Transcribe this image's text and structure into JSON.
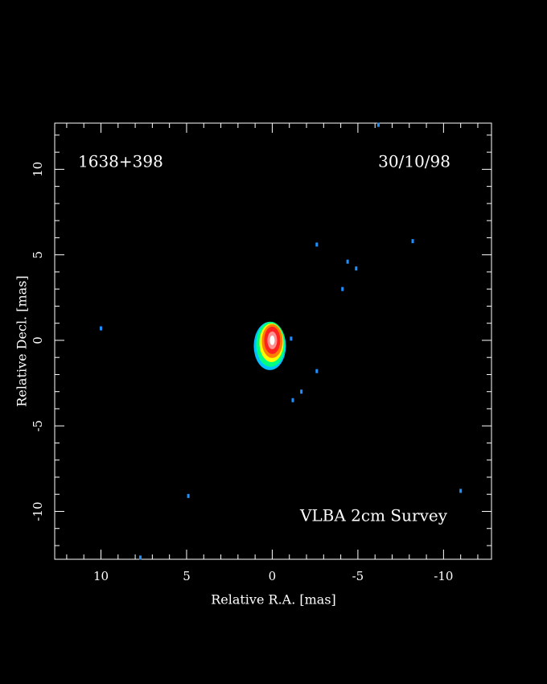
{
  "chart_data": {
    "type": "image",
    "source": "1638+398",
    "date": "30/10/98",
    "survey": "VLBA 2cm Survey",
    "x_label": "Relative R.A. [mas]",
    "y_label": "Relative Decl. [mas]",
    "xlim": [
      12.7,
      -12.8
    ],
    "ylim": [
      -12.8,
      12.7
    ],
    "xticks": [
      10,
      5,
      0,
      -5,
      -10
    ],
    "yticks": [
      -10,
      -5,
      0,
      5,
      10
    ],
    "xminorticks": [
      12,
      11,
      9,
      8,
      7,
      6,
      4,
      3,
      2,
      1,
      -1,
      -2,
      -3,
      -4,
      -6,
      -7,
      -8,
      -9,
      -11,
      -12
    ],
    "yminorticks": [
      -12,
      -11,
      -9,
      -8,
      -7,
      -6,
      -4,
      -3,
      -2,
      -1,
      1,
      2,
      3,
      4,
      6,
      7,
      8,
      9,
      11,
      12
    ],
    "core": [
      0,
      0
    ],
    "color": "#1e90ff",
    "x": [
      10,
      -2.6,
      -4.4,
      -4.9,
      -8.2,
      -4.1,
      -1.1,
      -2.6,
      -1.7,
      -1.2,
      4.9,
      -11,
      -6.2,
      7.7
    ],
    "y": [
      0.7,
      5.6,
      4.6,
      4.2,
      5.8,
      3.0,
      0.1,
      -1.8,
      -3.0,
      -3.5,
      -9.1,
      -8.8,
      12.6,
      -12.7
    ]
  }
}
